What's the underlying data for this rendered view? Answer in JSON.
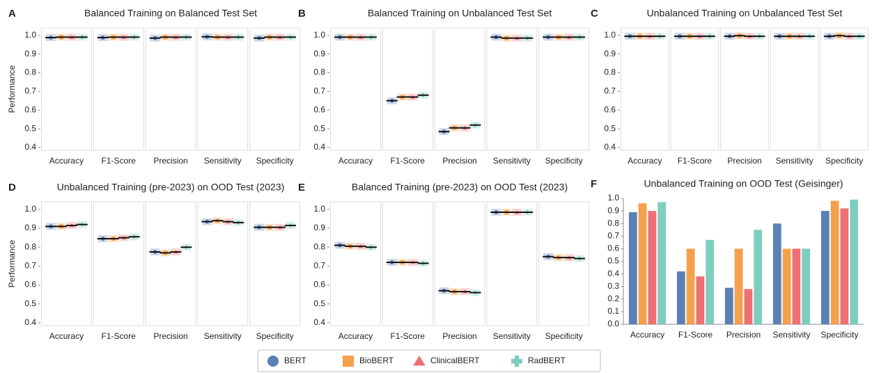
{
  "chart_data": [
    {
      "type": "strip",
      "panel_label": "A",
      "title": "Balanced Training on Balanced Test Set",
      "ylabel": "Performance",
      "categories": [
        "Accuracy",
        "F1-Score",
        "Precision",
        "Sensitivity",
        "Specificity"
      ],
      "series": [
        {
          "name": "BERT",
          "color": "#5b80b6",
          "marker": "circle",
          "values": [
            0.988,
            0.988,
            0.985,
            0.992,
            0.985
          ]
        },
        {
          "name": "BioBERT",
          "color": "#f5a04a",
          "marker": "square",
          "values": [
            0.99,
            0.99,
            0.99,
            0.99,
            0.99
          ]
        },
        {
          "name": "ClinicalBERT",
          "color": "#ee6f74",
          "marker": "triangle",
          "values": [
            0.99,
            0.99,
            0.99,
            0.99,
            0.99
          ]
        },
        {
          "name": "RadBERT",
          "color": "#7fcdbf",
          "marker": "cross",
          "values": [
            0.99,
            0.99,
            0.99,
            0.99,
            0.99
          ]
        }
      ],
      "ylim": [
        0.385,
        1.04
      ],
      "yticks": [
        0.4,
        0.5,
        0.6,
        0.7,
        0.8,
        0.9,
        {
          "value": 1,
          "label": "1.0"
        }
      ]
    },
    {
      "type": "strip",
      "panel_label": "B",
      "title": "Balanced Training on Unbalanced Test Set",
      "categories": [
        "Accuracy",
        "F1-Score",
        "Precision",
        "Sensitivity",
        "Specificity"
      ],
      "series": [
        {
          "name": "BERT",
          "color": "#5b80b6",
          "marker": "circle",
          "values": [
            0.99,
            0.65,
            0.485,
            0.99,
            0.99
          ]
        },
        {
          "name": "BioBERT",
          "color": "#f5a04a",
          "marker": "square",
          "values": [
            0.99,
            0.67,
            0.505,
            0.985,
            0.99
          ]
        },
        {
          "name": "ClinicalBERT",
          "color": "#ee6f74",
          "marker": "triangle",
          "values": [
            0.99,
            0.67,
            0.505,
            0.985,
            0.99
          ]
        },
        {
          "name": "RadBERT",
          "color": "#7fcdbf",
          "marker": "cross",
          "values": [
            0.99,
            0.68,
            0.52,
            0.985,
            0.99
          ]
        }
      ],
      "ylim": [
        0.385,
        1.04
      ],
      "yticks": [
        0.4,
        0.5,
        0.6,
        0.7,
        0.8,
        0.9,
        {
          "value": 1,
          "label": "1.0"
        }
      ]
    },
    {
      "type": "strip",
      "panel_label": "C",
      "title": "Unbalanced Training on Unbalanced Test Set",
      "categories": [
        "Accuracy",
        "F1-Score",
        "Precision",
        "Sensitivity",
        "Specificity"
      ],
      "series": [
        {
          "name": "BERT",
          "color": "#5b80b6",
          "marker": "circle",
          "values": [
            0.995,
            0.995,
            0.995,
            0.995,
            0.995
          ]
        },
        {
          "name": "BioBERT",
          "color": "#f5a04a",
          "marker": "square",
          "values": [
            0.995,
            0.995,
            0.998,
            0.995,
            0.998
          ]
        },
        {
          "name": "ClinicalBERT",
          "color": "#ee6f74",
          "marker": "triangle",
          "values": [
            0.995,
            0.995,
            0.995,
            0.995,
            0.995
          ]
        },
        {
          "name": "RadBERT",
          "color": "#7fcdbf",
          "marker": "cross",
          "values": [
            0.995,
            0.995,
            0.995,
            0.995,
            0.995
          ]
        }
      ],
      "ylim": [
        0.385,
        1.04
      ],
      "yticks": [
        0.4,
        0.5,
        0.6,
        0.7,
        0.8,
        0.9,
        {
          "value": 1,
          "label": "1.0"
        }
      ]
    },
    {
      "type": "strip",
      "panel_label": "D",
      "title": "Unbalanced Training (pre-2023) on OOD Test (2023)",
      "ylabel": "Performance",
      "categories": [
        "Accuracy",
        "F1-Score",
        "Precision",
        "Sensitivity",
        "Specificity"
      ],
      "series": [
        {
          "name": "BERT",
          "color": "#5b80b6",
          "marker": "circle",
          "values": [
            0.91,
            0.845,
            0.775,
            0.935,
            0.905
          ]
        },
        {
          "name": "BioBERT",
          "color": "#f5a04a",
          "marker": "square",
          "values": [
            0.91,
            0.845,
            0.77,
            0.94,
            0.905
          ]
        },
        {
          "name": "ClinicalBERT",
          "color": "#ee6f74",
          "marker": "triangle",
          "values": [
            0.915,
            0.85,
            0.775,
            0.935,
            0.905
          ]
        },
        {
          "name": "RadBERT",
          "color": "#7fcdbf",
          "marker": "cross",
          "values": [
            0.92,
            0.855,
            0.8,
            0.93,
            0.915
          ]
        }
      ],
      "ylim": [
        0.385,
        1.04
      ],
      "yticks": [
        0.4,
        0.5,
        0.6,
        0.7,
        0.8,
        0.9,
        {
          "value": 1,
          "label": "1.0"
        }
      ]
    },
    {
      "type": "strip",
      "panel_label": "E",
      "title": "Balanced Training (pre-2023) on OOD Test (2023)",
      "categories": [
        "Accuracy",
        "F1-Score",
        "Precision",
        "Sensitivity",
        "Specificity"
      ],
      "series": [
        {
          "name": "BERT",
          "color": "#5b80b6",
          "marker": "circle",
          "values": [
            0.81,
            0.72,
            0.57,
            0.985,
            0.75
          ]
        },
        {
          "name": "BioBERT",
          "color": "#f5a04a",
          "marker": "square",
          "values": [
            0.805,
            0.72,
            0.565,
            0.985,
            0.745
          ]
        },
        {
          "name": "ClinicalBERT",
          "color": "#ee6f74",
          "marker": "triangle",
          "values": [
            0.805,
            0.72,
            0.565,
            0.985,
            0.745
          ]
        },
        {
          "name": "RadBERT",
          "color": "#7fcdbf",
          "marker": "cross",
          "values": [
            0.8,
            0.715,
            0.56,
            0.985,
            0.74
          ]
        }
      ],
      "ylim": [
        0.385,
        1.04
      ],
      "yticks": [
        0.4,
        0.5,
        0.6,
        0.7,
        0.8,
        0.9,
        {
          "value": 1,
          "label": "1.0"
        }
      ]
    },
    {
      "type": "bar",
      "panel_label": "F",
      "title": "Unbalanced Training on OOD Test (Geisinger)",
      "categories": [
        "Accuracy",
        "F1-Score",
        "Precision",
        "Sensitivity",
        "Specificity"
      ],
      "series": [
        {
          "name": "BERT",
          "color": "#5b80b6",
          "values": [
            0.89,
            0.42,
            0.29,
            0.8,
            0.9
          ]
        },
        {
          "name": "BioBERT",
          "color": "#f5a04a",
          "values": [
            0.96,
            0.6,
            0.6,
            0.6,
            0.98
          ]
        },
        {
          "name": "ClinicalBERT",
          "color": "#ee6f74",
          "values": [
            0.9,
            0.38,
            0.28,
            0.6,
            0.92
          ]
        },
        {
          "name": "RadBERT",
          "color": "#7fcdbf",
          "values": [
            0.97,
            0.67,
            0.75,
            0.6,
            0.99
          ]
        }
      ],
      "ylim": [
        0,
        1
      ],
      "yticks": [
        {
          "value": 0,
          "label": "0.0"
        },
        0.1,
        0.2,
        0.3,
        0.4,
        0.5,
        0.6,
        0.7,
        0.8,
        0.9,
        {
          "value": 1,
          "label": "1.0"
        }
      ]
    }
  ]
}
